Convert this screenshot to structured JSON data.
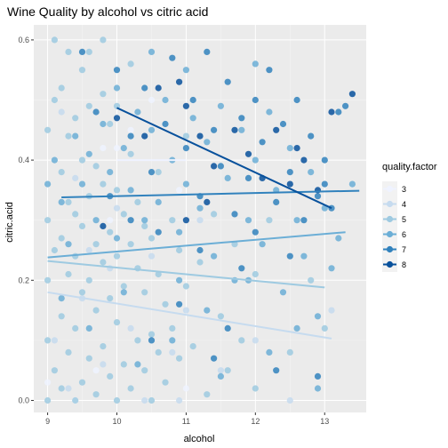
{
  "chart_data": {
    "type": "scatter",
    "title": "Wine Quality by alcohol vs citric acid",
    "xlabel": "alcohol",
    "ylabel": "citric.acid",
    "xlim": [
      8.8,
      13.6
    ],
    "ylim": [
      -0.02,
      0.625
    ],
    "x_ticks": [
      9,
      10,
      11,
      12,
      13
    ],
    "y_ticks": [
      0.0,
      0.2,
      0.4,
      0.6
    ],
    "x_tick_labels": [
      "9",
      "10",
      "11",
      "12",
      "13"
    ],
    "y_tick_labels": [
      "0.0",
      "0.2",
      "0.4",
      "0.6"
    ],
    "grid": true,
    "legend": {
      "title": "quality.factor",
      "position": "right",
      "entries": [
        "3",
        "4",
        "5",
        "6",
        "7",
        "8"
      ]
    },
    "colors": {
      "3": "#eff3ff",
      "4": "#c6dbef",
      "5": "#9ecae1",
      "6": "#6baed6",
      "7": "#3182bd",
      "8": "#08519c",
      "panel": "#ebebeb",
      "grid_major": "#ffffff"
    },
    "series": [
      {
        "name": "3",
        "trend": [
          [
            10.0,
            0.4
          ],
          [
            11.0,
            0.4
          ]
        ],
        "points": [
          [
            9.4,
            0.0
          ],
          [
            9.7,
            0.05
          ],
          [
            10.0,
            0.42
          ],
          [
            10.2,
            0.45
          ],
          [
            11.0,
            0.02
          ],
          [
            10.5,
            0.5
          ],
          [
            9.9,
            0.3
          ],
          [
            9.8,
            0.42
          ],
          [
            10.9,
            0.35
          ],
          [
            9.0,
            0.03
          ]
        ]
      },
      {
        "name": "4",
        "trend": [
          [
            9.0,
            0.18
          ],
          [
            13.1,
            0.103
          ]
        ],
        "points": [
          [
            9.1,
            0.1
          ],
          [
            9.3,
            0.02
          ],
          [
            9.5,
            0.17
          ],
          [
            9.6,
            0.25
          ],
          [
            9.8,
            0.06
          ],
          [
            10.0,
            0.32
          ],
          [
            10.2,
            0.12
          ],
          [
            10.4,
            0.0
          ],
          [
            10.5,
            0.24
          ],
          [
            10.8,
            0.08
          ],
          [
            11.0,
            0.15
          ],
          [
            11.2,
            0.3
          ],
          [
            11.5,
            0.05
          ],
          [
            12.0,
            0.1
          ],
          [
            12.5,
            0.0
          ],
          [
            13.1,
            0.15
          ],
          [
            9.2,
            0.48
          ],
          [
            9.9,
            0.22
          ],
          [
            10.9,
            0.0
          ],
          [
            9.4,
            0.37
          ]
        ]
      },
      {
        "name": "5",
        "trend": [
          [
            9.0,
            0.232
          ],
          [
            13.0,
            0.188
          ]
        ],
        "points": [
          [
            9.0,
            0.0
          ],
          [
            9.0,
            0.1
          ],
          [
            9.0,
            0.2
          ],
          [
            9.0,
            0.3
          ],
          [
            9.0,
            0.45
          ],
          [
            9.1,
            0.05
          ],
          [
            9.1,
            0.25
          ],
          [
            9.1,
            0.5
          ],
          [
            9.2,
            0.02
          ],
          [
            9.2,
            0.14
          ],
          [
            9.2,
            0.27
          ],
          [
            9.2,
            0.38
          ],
          [
            9.2,
            0.52
          ],
          [
            9.3,
            0.08
          ],
          [
            9.3,
            0.21
          ],
          [
            9.3,
            0.33
          ],
          [
            9.3,
            0.44
          ],
          [
            9.3,
            0.58
          ],
          [
            9.4,
            0.0
          ],
          [
            9.4,
            0.12
          ],
          [
            9.4,
            0.24
          ],
          [
            9.4,
            0.31
          ],
          [
            9.4,
            0.47
          ],
          [
            9.5,
            0.03
          ],
          [
            9.5,
            0.18
          ],
          [
            9.5,
            0.29
          ],
          [
            9.5,
            0.4
          ],
          [
            9.5,
            0.55
          ],
          [
            9.6,
            0.07
          ],
          [
            9.6,
            0.2
          ],
          [
            9.6,
            0.34
          ],
          [
            9.6,
            0.49
          ],
          [
            9.7,
            0.01
          ],
          [
            9.7,
            0.15
          ],
          [
            9.7,
            0.26
          ],
          [
            9.7,
            0.39
          ],
          [
            9.8,
            0.09
          ],
          [
            9.8,
            0.23
          ],
          [
            9.8,
            0.36
          ],
          [
            9.8,
            0.51
          ],
          [
            9.9,
            0.04
          ],
          [
            9.9,
            0.17
          ],
          [
            9.9,
            0.28
          ],
          [
            9.9,
            0.46
          ],
          [
            10.0,
            0.0
          ],
          [
            10.0,
            0.13
          ],
          [
            10.0,
            0.24
          ],
          [
            10.0,
            0.35
          ],
          [
            10.0,
            0.49
          ],
          [
            10.1,
            0.06
          ],
          [
            10.1,
            0.19
          ],
          [
            10.1,
            0.31
          ],
          [
            10.2,
            0.02
          ],
          [
            10.2,
            0.26
          ],
          [
            10.2,
            0.41
          ],
          [
            10.3,
            0.1
          ],
          [
            10.3,
            0.22
          ],
          [
            10.3,
            0.33
          ],
          [
            10.4,
            0.05
          ],
          [
            10.4,
            0.18
          ],
          [
            10.4,
            0.29
          ],
          [
            10.5,
            0.0
          ],
          [
            10.5,
            0.11
          ],
          [
            10.5,
            0.27
          ],
          [
            10.6,
            0.08
          ],
          [
            10.6,
            0.21
          ],
          [
            10.6,
            0.38
          ],
          [
            10.7,
            0.03
          ],
          [
            10.7,
            0.16
          ],
          [
            10.8,
            0.12
          ],
          [
            10.8,
            0.3
          ],
          [
            10.9,
            0.07
          ],
          [
            10.9,
            0.25
          ],
          [
            11.0,
            0.19
          ],
          [
            11.0,
            0.44
          ],
          [
            11.1,
            0.09
          ],
          [
            11.2,
            0.23
          ],
          [
            11.3,
            0.01
          ],
          [
            11.4,
            0.31
          ],
          [
            11.5,
            0.14
          ],
          [
            11.6,
            0.05
          ],
          [
            11.7,
            0.26
          ],
          [
            11.8,
            0.1
          ],
          [
            12.0,
            0.02
          ],
          [
            12.0,
            0.21
          ],
          [
            12.2,
            0.3
          ],
          [
            12.5,
            0.08
          ],
          [
            12.8,
            0.2
          ],
          [
            13.0,
            0.12
          ],
          [
            9.1,
            0.6
          ],
          [
            9.6,
            0.58
          ],
          [
            10.2,
            0.56
          ],
          [
            9.8,
            0.6
          ]
        ]
      },
      {
        "name": "6",
        "trend": [
          [
            9.0,
            0.238
          ],
          [
            13.3,
            0.28
          ]
        ],
        "points": [
          [
            9.0,
            0.36
          ],
          [
            9.1,
            0.4
          ],
          [
            9.2,
            0.33
          ],
          [
            9.3,
            0.26
          ],
          [
            9.4,
            0.44
          ],
          [
            9.5,
            0.36
          ],
          [
            9.6,
            0.41
          ],
          [
            9.7,
            0.3
          ],
          [
            9.8,
            0.46
          ],
          [
            9.9,
            0.38
          ],
          [
            10.0,
            0.27
          ],
          [
            10.0,
            0.52
          ],
          [
            10.1,
            0.42
          ],
          [
            10.2,
            0.35
          ],
          [
            10.3,
            0.48
          ],
          [
            10.4,
            0.3
          ],
          [
            10.5,
            0.45
          ],
          [
            10.5,
            0.58
          ],
          [
            10.6,
            0.33
          ],
          [
            10.7,
            0.5
          ],
          [
            10.8,
            0.4
          ],
          [
            10.9,
            0.28
          ],
          [
            11.0,
            0.36
          ],
          [
            11.0,
            0.55
          ],
          [
            11.1,
            0.47
          ],
          [
            11.2,
            0.32
          ],
          [
            11.3,
            0.43
          ],
          [
            11.4,
            0.24
          ],
          [
            11.5,
            0.49
          ],
          [
            11.6,
            0.37
          ],
          [
            11.7,
            0.2
          ],
          [
            11.8,
            0.45
          ],
          [
            11.9,
            0.3
          ],
          [
            12.0,
            0.4
          ],
          [
            12.0,
            0.56
          ],
          [
            12.1,
            0.26
          ],
          [
            12.2,
            0.48
          ],
          [
            12.3,
            0.35
          ],
          [
            12.4,
            0.18
          ],
          [
            12.5,
            0.42
          ],
          [
            12.6,
            0.3
          ],
          [
            12.7,
            0.24
          ],
          [
            12.8,
            0.38
          ],
          [
            12.9,
            0.14
          ],
          [
            13.0,
            0.32
          ],
          [
            13.2,
            0.27
          ],
          [
            13.4,
            0.36
          ],
          [
            10.3,
            0.06
          ],
          [
            10.8,
            0.1
          ],
          [
            11.5,
            0.04
          ],
          [
            12.2,
            0.08
          ],
          [
            10.1,
            0.18
          ],
          [
            11.3,
            0.15
          ],
          [
            12.6,
            0.12
          ],
          [
            9.6,
            0.12
          ],
          [
            10.9,
            0.2
          ],
          [
            11.9,
            0.2
          ],
          [
            12.9,
            0.02
          ],
          [
            9.2,
            0.17
          ],
          [
            13.1,
            0.22
          ]
        ]
      },
      {
        "name": "7",
        "trend": [
          [
            9.2,
            0.338
          ],
          [
            13.5,
            0.349
          ]
        ],
        "points": [
          [
            9.5,
            0.58
          ],
          [
            9.7,
            0.48
          ],
          [
            10.0,
            0.55
          ],
          [
            10.2,
            0.44
          ],
          [
            10.4,
            0.52
          ],
          [
            10.5,
            0.38
          ],
          [
            10.7,
            0.46
          ],
          [
            10.8,
            0.57
          ],
          [
            11.0,
            0.42
          ],
          [
            11.1,
            0.5
          ],
          [
            11.2,
            0.34
          ],
          [
            11.3,
            0.58
          ],
          [
            11.4,
            0.45
          ],
          [
            11.5,
            0.39
          ],
          [
            11.6,
            0.53
          ],
          [
            11.7,
            0.31
          ],
          [
            11.8,
            0.47
          ],
          [
            11.9,
            0.37
          ],
          [
            12.0,
            0.5
          ],
          [
            12.0,
            0.28
          ],
          [
            12.1,
            0.43
          ],
          [
            12.2,
            0.55
          ],
          [
            12.3,
            0.33
          ],
          [
            12.4,
            0.46
          ],
          [
            12.5,
            0.38
          ],
          [
            12.6,
            0.5
          ],
          [
            12.7,
            0.3
          ],
          [
            12.8,
            0.44
          ],
          [
            12.9,
            0.34
          ],
          [
            13.0,
            0.4
          ],
          [
            13.1,
            0.32
          ],
          [
            13.2,
            0.48
          ],
          [
            13.3,
            0.49
          ],
          [
            13.0,
            0.36
          ],
          [
            12.5,
            0.24
          ],
          [
            11.8,
            0.22
          ],
          [
            11.2,
            0.25
          ],
          [
            10.6,
            0.28
          ],
          [
            10.2,
            0.3
          ],
          [
            9.9,
            0.34
          ],
          [
            10.9,
            0.16
          ],
          [
            11.6,
            0.12
          ],
          [
            12.3,
            0.05
          ],
          [
            12.9,
            0.04
          ],
          [
            11.4,
            0.07
          ],
          [
            10.5,
            0.1
          ]
        ]
      },
      {
        "name": "8",
        "trend": [
          [
            10.0,
            0.487
          ],
          [
            13.1,
            0.32
          ]
        ],
        "points": [
          [
            10.0,
            0.47
          ],
          [
            10.4,
            0.44
          ],
          [
            10.6,
            0.52
          ],
          [
            10.9,
            0.53
          ],
          [
            11.0,
            0.49
          ],
          [
            11.0,
            0.3
          ],
          [
            11.2,
            0.44
          ],
          [
            11.3,
            0.33
          ],
          [
            11.4,
            0.39
          ],
          [
            11.7,
            0.45
          ],
          [
            11.9,
            0.41
          ],
          [
            12.1,
            0.37
          ],
          [
            12.3,
            0.45
          ],
          [
            12.5,
            0.36
          ],
          [
            12.6,
            0.42
          ],
          [
            12.7,
            0.4
          ],
          [
            13.1,
            0.48
          ],
          [
            13.4,
            0.51
          ],
          [
            9.8,
            0.29
          ],
          [
            12.9,
            0.35
          ]
        ]
      }
    ]
  }
}
